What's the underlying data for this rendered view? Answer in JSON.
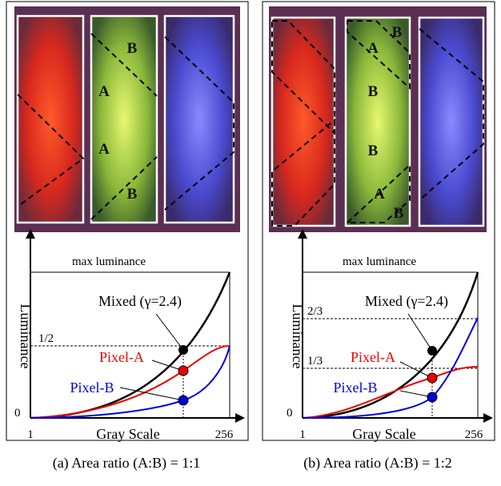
{
  "panels": [
    {
      "image_labels": [
        "B",
        "A",
        "A",
        "B"
      ],
      "plot": {
        "top_label": "max luminance",
        "y_label": "Luminance",
        "x_label": "Gray Scale",
        "y_origin": "0",
        "x_start": "1",
        "x_end": "256",
        "levels": [
          "1/2"
        ],
        "mixed": "Mixed (γ=2.4)",
        "pixel_a": "Pixel-A",
        "pixel_b": "Pixel-B"
      },
      "caption": "(a) Area ratio (A:B) = 1:1"
    },
    {
      "image_labels": [
        "B",
        "A",
        "B",
        "B",
        "A",
        "B"
      ],
      "plot": {
        "top_label": "max luminance",
        "y_label": "Luminance",
        "x_label": "Gray Scale",
        "y_origin": "0",
        "x_start": "1",
        "x_end": "256",
        "levels": [
          "2/3",
          "1/3"
        ],
        "mixed": "Mixed (γ=2.4)",
        "pixel_a": "Pixel-A",
        "pixel_b": "Pixel-B"
      },
      "caption": "(b) Area ratio (A:B) = 1:2"
    }
  ]
}
